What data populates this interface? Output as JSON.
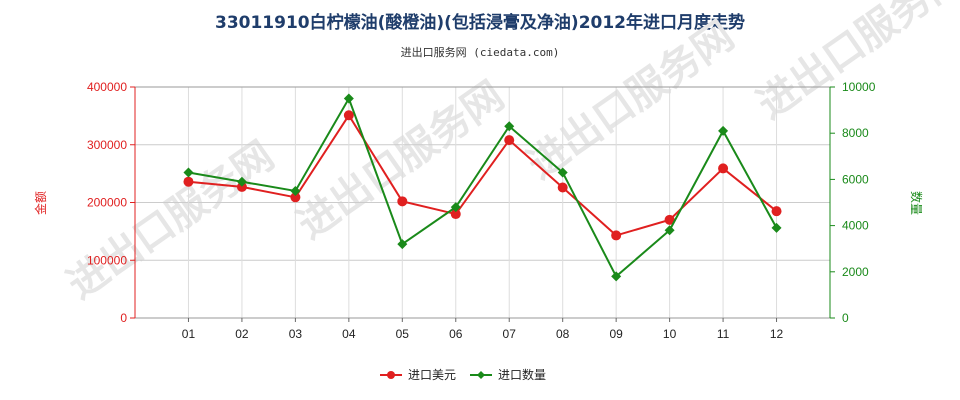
{
  "chart_data": {
    "type": "line",
    "title": "33011910白柠檬油(酸橙油)(包括浸膏及净油)2012年进口月度走势",
    "subtitle": "进出口服务网 (ciedata.com)",
    "categories": [
      "01",
      "02",
      "03",
      "04",
      "05",
      "06",
      "07",
      "08",
      "09",
      "10",
      "11",
      "12"
    ],
    "y_left": {
      "label": "金额",
      "range": [
        0,
        400000
      ],
      "ticks": [
        0,
        100000,
        200000,
        300000,
        400000
      ],
      "color": "#e02020"
    },
    "y_right": {
      "label": "数量",
      "range": [
        0,
        10000
      ],
      "ticks": [
        0,
        2000,
        4000,
        6000,
        8000,
        10000
      ],
      "color": "#1a8a1a"
    },
    "series": [
      {
        "name": "进口美元",
        "axis": "left",
        "color": "#e02020",
        "values": [
          236000,
          227000,
          209000,
          351000,
          202000,
          180000,
          308000,
          226000,
          143000,
          170000,
          259000,
          185000
        ]
      },
      {
        "name": "进口数量",
        "axis": "right",
        "color": "#1a8a1a",
        "values": [
          6300,
          5900,
          5500,
          9500,
          3200,
          4800,
          8300,
          6300,
          1800,
          3800,
          8100,
          3900
        ]
      }
    ],
    "grid": true,
    "legend_position": "bottom-center",
    "watermark": "进出口服务网"
  }
}
